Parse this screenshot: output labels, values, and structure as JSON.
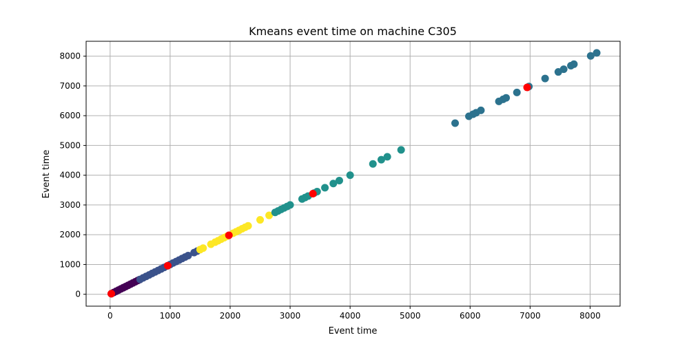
{
  "chart_data": {
    "type": "scatter",
    "title": "Kmeans event time on machine C305",
    "xlabel": "Event time",
    "ylabel": "Event time",
    "xlim": [
      -400,
      8500
    ],
    "ylim": [
      -400,
      8500
    ],
    "xticks": [
      0,
      1000,
      2000,
      3000,
      4000,
      5000,
      6000,
      7000,
      8000
    ],
    "yticks": [
      0,
      1000,
      2000,
      3000,
      4000,
      5000,
      6000,
      7000,
      8000
    ],
    "grid": true,
    "series": [
      {
        "color": "#440154",
        "points": [
          [
            20,
            20
          ],
          [
            60,
            60
          ],
          [
            100,
            100
          ],
          [
            140,
            140
          ],
          [
            180,
            180
          ],
          [
            220,
            220
          ],
          [
            260,
            260
          ],
          [
            300,
            300
          ],
          [
            340,
            340
          ],
          [
            380,
            380
          ],
          [
            420,
            420
          ],
          [
            460,
            460
          ],
          [
            490,
            490
          ]
        ]
      },
      {
        "color": "#3b528b",
        "points": [
          [
            500,
            500
          ],
          [
            550,
            550
          ],
          [
            600,
            600
          ],
          [
            650,
            650
          ],
          [
            700,
            700
          ],
          [
            750,
            750
          ],
          [
            800,
            800
          ],
          [
            850,
            850
          ],
          [
            900,
            900
          ],
          [
            950,
            950
          ],
          [
            1000,
            1000
          ],
          [
            1050,
            1050
          ],
          [
            1100,
            1100
          ],
          [
            1150,
            1150
          ],
          [
            1200,
            1200
          ],
          [
            1250,
            1250
          ],
          [
            1300,
            1300
          ],
          [
            1400,
            1400
          ],
          [
            1450,
            1450
          ]
        ]
      },
      {
        "color": "#fde725",
        "points": [
          [
            1500,
            1500
          ],
          [
            1550,
            1550
          ],
          [
            1680,
            1680
          ],
          [
            1750,
            1750
          ],
          [
            1800,
            1800
          ],
          [
            1850,
            1850
          ],
          [
            1900,
            1900
          ],
          [
            1950,
            1950
          ],
          [
            2050,
            2050
          ],
          [
            2100,
            2100
          ],
          [
            2150,
            2150
          ],
          [
            2200,
            2200
          ],
          [
            2250,
            2250
          ],
          [
            2300,
            2300
          ],
          [
            2500,
            2500
          ],
          [
            2650,
            2650
          ]
        ]
      },
      {
        "color": "#21918c",
        "points": [
          [
            2750,
            2750
          ],
          [
            2800,
            2800
          ],
          [
            2850,
            2850
          ],
          [
            2900,
            2900
          ],
          [
            2950,
            2950
          ],
          [
            3000,
            3000
          ],
          [
            3200,
            3200
          ],
          [
            3250,
            3250
          ],
          [
            3300,
            3300
          ],
          [
            3400,
            3400
          ],
          [
            3450,
            3450
          ],
          [
            3580,
            3580
          ],
          [
            3720,
            3720
          ],
          [
            3820,
            3820
          ],
          [
            4000,
            4000
          ],
          [
            4380,
            4380
          ],
          [
            4520,
            4520
          ],
          [
            4620,
            4620
          ],
          [
            4850,
            4850
          ]
        ]
      },
      {
        "color": "#2c728e",
        "points": [
          [
            5750,
            5750
          ],
          [
            5980,
            5980
          ],
          [
            6050,
            6050
          ],
          [
            6100,
            6100
          ],
          [
            6180,
            6180
          ],
          [
            6480,
            6480
          ],
          [
            6550,
            6550
          ],
          [
            6600,
            6600
          ],
          [
            6780,
            6780
          ],
          [
            6980,
            6980
          ],
          [
            7250,
            7250
          ],
          [
            7470,
            7470
          ],
          [
            7560,
            7560
          ],
          [
            7680,
            7680
          ],
          [
            7730,
            7730
          ],
          [
            8010,
            8010
          ],
          [
            8110,
            8110
          ]
        ]
      },
      {
        "color": "#ff0000",
        "points": [
          [
            20,
            20
          ],
          [
            960,
            960
          ],
          [
            1980,
            1980
          ],
          [
            3380,
            3380
          ],
          [
            6950,
            6950
          ]
        ]
      }
    ]
  }
}
